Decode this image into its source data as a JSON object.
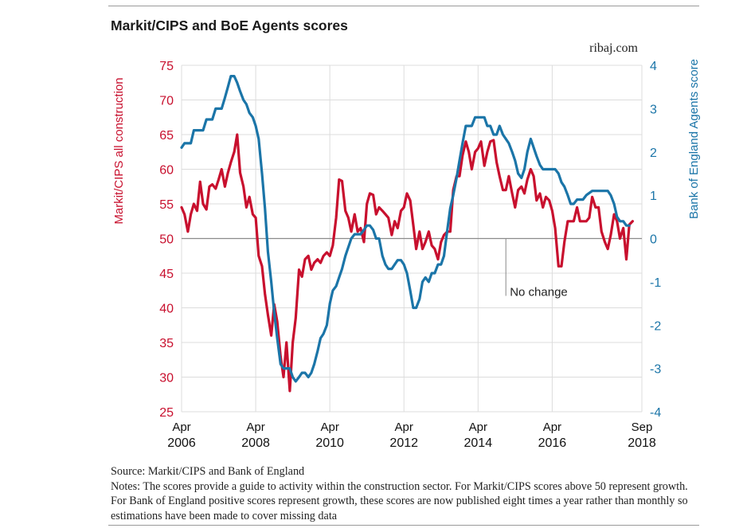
{
  "chart_data": {
    "type": "line",
    "title": "Markit/CIPS and BoE Agents scores",
    "source_brand": "ribaj.com",
    "ylabel_left": "Markit/CIPS all construction",
    "ylabel_right": "Bank of England Agents score",
    "ylim_left": [
      25,
      75
    ],
    "ylim_right": [
      -4,
      4
    ],
    "yticks_left": [
      "75",
      "70",
      "65",
      "60",
      "55",
      "50",
      "45",
      "40",
      "35",
      "30",
      "25"
    ],
    "yticks_right": [
      "4",
      "3",
      "2",
      "1",
      "0",
      "-1",
      "-2",
      "-3",
      "-4"
    ],
    "xlim": [
      2006.25,
      2018.67
    ],
    "x_ticks": [
      {
        "month": "Apr",
        "year": "2006",
        "x": 2006.25
      },
      {
        "month": "Apr",
        "year": "2008",
        "x": 2008.25
      },
      {
        "month": "Apr",
        "year": "2010",
        "x": 2010.25
      },
      {
        "month": "Apr",
        "year": "2012",
        "x": 2012.25
      },
      {
        "month": "Apr",
        "year": "2014",
        "x": 2014.25
      },
      {
        "month": "Apr",
        "year": "2016",
        "x": 2016.25
      },
      {
        "month": "Sep",
        "year": "2018",
        "x": 2018.67
      }
    ],
    "grid": true,
    "reference_line": {
      "value_left": 50,
      "label": "No change",
      "x": 2015.0
    },
    "series": [
      {
        "name": "Markit/CIPS all construction",
        "axis": "left",
        "color": "#c8102e",
        "points": [
          [
            2006.25,
            54.5
          ],
          [
            2006.33,
            53.5
          ],
          [
            2006.42,
            51
          ],
          [
            2006.5,
            53.5
          ],
          [
            2006.58,
            55
          ],
          [
            2006.67,
            54
          ],
          [
            2006.75,
            58.2
          ],
          [
            2006.83,
            55
          ],
          [
            2006.92,
            54.2
          ],
          [
            2007.0,
            57.5
          ],
          [
            2007.08,
            57.8
          ],
          [
            2007.17,
            57.2
          ],
          [
            2007.25,
            58.5
          ],
          [
            2007.33,
            60
          ],
          [
            2007.42,
            57.5
          ],
          [
            2007.5,
            59.5
          ],
          [
            2007.58,
            61
          ],
          [
            2007.67,
            62.5
          ],
          [
            2007.75,
            65
          ],
          [
            2007.83,
            59.5
          ],
          [
            2007.92,
            57.5
          ],
          [
            2008.0,
            54.5
          ],
          [
            2008.08,
            56
          ],
          [
            2008.17,
            53.5
          ],
          [
            2008.25,
            53
          ],
          [
            2008.33,
            47.5
          ],
          [
            2008.42,
            46
          ],
          [
            2008.5,
            42
          ],
          [
            2008.58,
            39
          ],
          [
            2008.67,
            36
          ],
          [
            2008.75,
            40.5
          ],
          [
            2008.83,
            38
          ],
          [
            2008.92,
            33
          ],
          [
            2009.0,
            30
          ],
          [
            2009.08,
            35
          ],
          [
            2009.17,
            28
          ],
          [
            2009.25,
            35
          ],
          [
            2009.33,
            38.5
          ],
          [
            2009.42,
            45.5
          ],
          [
            2009.5,
            44.5
          ],
          [
            2009.58,
            47
          ],
          [
            2009.67,
            47.5
          ],
          [
            2009.75,
            45.5
          ],
          [
            2009.83,
            46.5
          ],
          [
            2009.92,
            47
          ],
          [
            2010.0,
            46.5
          ],
          [
            2010.08,
            47.5
          ],
          [
            2010.17,
            48
          ],
          [
            2010.25,
            47.5
          ],
          [
            2010.33,
            49
          ],
          [
            2010.42,
            53
          ],
          [
            2010.5,
            58.5
          ],
          [
            2010.58,
            58.3
          ],
          [
            2010.67,
            54
          ],
          [
            2010.75,
            53
          ],
          [
            2010.83,
            51
          ],
          [
            2010.92,
            53.5
          ],
          [
            2011.0,
            51
          ],
          [
            2011.08,
            51.5
          ],
          [
            2011.17,
            49.5
          ],
          [
            2011.25,
            55
          ],
          [
            2011.33,
            56.5
          ],
          [
            2011.42,
            56.3
          ],
          [
            2011.5,
            53.5
          ],
          [
            2011.58,
            54.5
          ],
          [
            2011.67,
            54
          ],
          [
            2011.75,
            53.5
          ],
          [
            2011.83,
            53
          ],
          [
            2011.92,
            50.5
          ],
          [
            2012.0,
            52.5
          ],
          [
            2012.08,
            51.5
          ],
          [
            2012.17,
            54
          ],
          [
            2012.25,
            54.5
          ],
          [
            2012.33,
            56.5
          ],
          [
            2012.42,
            55.5
          ],
          [
            2012.5,
            52
          ],
          [
            2012.58,
            48.5
          ],
          [
            2012.67,
            51
          ],
          [
            2012.75,
            48.5
          ],
          [
            2012.83,
            49.5
          ],
          [
            2012.92,
            51
          ],
          [
            2013.0,
            49
          ],
          [
            2013.08,
            48.5
          ],
          [
            2013.17,
            47
          ],
          [
            2013.25,
            49.5
          ],
          [
            2013.33,
            50.5
          ],
          [
            2013.42,
            51
          ],
          [
            2013.5,
            51
          ],
          [
            2013.58,
            57
          ],
          [
            2013.67,
            59
          ],
          [
            2013.75,
            59
          ],
          [
            2013.83,
            62
          ],
          [
            2013.92,
            64
          ],
          [
            2014.0,
            62.5
          ],
          [
            2014.08,
            60
          ],
          [
            2014.17,
            62.5
          ],
          [
            2014.25,
            63
          ],
          [
            2014.33,
            64
          ],
          [
            2014.42,
            60.5
          ],
          [
            2014.5,
            62.5
          ],
          [
            2014.58,
            64
          ],
          [
            2014.67,
            64.2
          ],
          [
            2014.75,
            61
          ],
          [
            2014.83,
            59
          ],
          [
            2014.92,
            57
          ],
          [
            2015.0,
            57
          ],
          [
            2015.08,
            59
          ],
          [
            2015.17,
            56.5
          ],
          [
            2015.25,
            54.5
          ],
          [
            2015.33,
            57
          ],
          [
            2015.42,
            57.5
          ],
          [
            2015.5,
            56.5
          ],
          [
            2015.58,
            58.5
          ],
          [
            2015.67,
            60
          ],
          [
            2015.75,
            59
          ],
          [
            2015.83,
            55.5
          ],
          [
            2015.92,
            56.5
          ],
          [
            2016.0,
            54.5
          ],
          [
            2016.08,
            56
          ],
          [
            2016.17,
            55.5
          ],
          [
            2016.25,
            54
          ],
          [
            2016.33,
            51.5
          ],
          [
            2016.42,
            46
          ],
          [
            2016.5,
            46
          ],
          [
            2016.58,
            49.5
          ],
          [
            2016.67,
            52.5
          ],
          [
            2016.75,
            52.5
          ],
          [
            2016.83,
            52.5
          ],
          [
            2016.92,
            54.5
          ],
          [
            2017.0,
            52.5
          ],
          [
            2017.08,
            52.5
          ],
          [
            2017.17,
            52.5
          ],
          [
            2017.25,
            53
          ],
          [
            2017.33,
            56
          ],
          [
            2017.42,
            54.5
          ],
          [
            2017.5,
            54.5
          ],
          [
            2017.58,
            51
          ],
          [
            2017.67,
            49.5
          ],
          [
            2017.75,
            48.5
          ],
          [
            2017.83,
            50.5
          ],
          [
            2017.92,
            53.5
          ],
          [
            2018.0,
            52.5
          ],
          [
            2018.08,
            50
          ],
          [
            2018.17,
            51.5
          ],
          [
            2018.25,
            47
          ],
          [
            2018.33,
            52
          ],
          [
            2018.42,
            52.5
          ]
        ]
      },
      {
        "name": "Bank of England Agents score",
        "axis": "right",
        "color": "#1b75a8",
        "points": [
          [
            2006.25,
            2.1
          ],
          [
            2006.33,
            2.2
          ],
          [
            2006.5,
            2.2
          ],
          [
            2006.58,
            2.5
          ],
          [
            2006.83,
            2.5
          ],
          [
            2006.92,
            2.75
          ],
          [
            2007.08,
            2.75
          ],
          [
            2007.17,
            3.0
          ],
          [
            2007.33,
            3.0
          ],
          [
            2007.42,
            3.25
          ],
          [
            2007.5,
            3.5
          ],
          [
            2007.58,
            3.75
          ],
          [
            2007.67,
            3.75
          ],
          [
            2007.75,
            3.6
          ],
          [
            2007.83,
            3.4
          ],
          [
            2007.92,
            3.2
          ],
          [
            2008.0,
            3.1
          ],
          [
            2008.08,
            2.9
          ],
          [
            2008.17,
            2.8
          ],
          [
            2008.25,
            2.6
          ],
          [
            2008.33,
            2.3
          ],
          [
            2008.42,
            1.5
          ],
          [
            2008.5,
            0.7
          ],
          [
            2008.58,
            -0.3
          ],
          [
            2008.67,
            -1.0
          ],
          [
            2008.75,
            -1.7
          ],
          [
            2008.83,
            -2.3
          ],
          [
            2008.92,
            -2.9
          ],
          [
            2009.0,
            -3.0
          ],
          [
            2009.08,
            -3.0
          ],
          [
            2009.17,
            -3.0
          ],
          [
            2009.25,
            -3.2
          ],
          [
            2009.33,
            -3.3
          ],
          [
            2009.42,
            -3.2
          ],
          [
            2009.5,
            -3.1
          ],
          [
            2009.58,
            -3.1
          ],
          [
            2009.67,
            -3.2
          ],
          [
            2009.75,
            -3.1
          ],
          [
            2009.83,
            -2.9
          ],
          [
            2009.92,
            -2.6
          ],
          [
            2010.0,
            -2.3
          ],
          [
            2010.08,
            -2.2
          ],
          [
            2010.17,
            -2.0
          ],
          [
            2010.25,
            -1.5
          ],
          [
            2010.33,
            -1.2
          ],
          [
            2010.42,
            -1.1
          ],
          [
            2010.5,
            -0.9
          ],
          [
            2010.58,
            -0.7
          ],
          [
            2010.67,
            -0.4
          ],
          [
            2010.75,
            -0.2
          ],
          [
            2010.83,
            0.0
          ],
          [
            2010.92,
            0.1
          ],
          [
            2011.08,
            0.1
          ],
          [
            2011.17,
            0.2
          ],
          [
            2011.25,
            0.3
          ],
          [
            2011.33,
            0.3
          ],
          [
            2011.42,
            0.2
          ],
          [
            2011.5,
            0.0
          ],
          [
            2011.58,
            0.0
          ],
          [
            2011.67,
            -0.4
          ],
          [
            2011.75,
            -0.6
          ],
          [
            2011.83,
            -0.7
          ],
          [
            2011.92,
            -0.7
          ],
          [
            2012.0,
            -0.6
          ],
          [
            2012.08,
            -0.5
          ],
          [
            2012.17,
            -0.5
          ],
          [
            2012.25,
            -0.6
          ],
          [
            2012.33,
            -0.8
          ],
          [
            2012.42,
            -1.2
          ],
          [
            2012.5,
            -1.6
          ],
          [
            2012.58,
            -1.6
          ],
          [
            2012.67,
            -1.4
          ],
          [
            2012.75,
            -1.0
          ],
          [
            2012.83,
            -0.9
          ],
          [
            2012.92,
            -1.0
          ],
          [
            2013.0,
            -0.8
          ],
          [
            2013.08,
            -0.8
          ],
          [
            2013.17,
            -0.6
          ],
          [
            2013.25,
            -0.6
          ],
          [
            2013.33,
            -0.4
          ],
          [
            2013.42,
            0.2
          ],
          [
            2013.5,
            0.7
          ],
          [
            2013.58,
            1.0
          ],
          [
            2013.67,
            1.4
          ],
          [
            2013.75,
            1.8
          ],
          [
            2013.83,
            2.2
          ],
          [
            2013.92,
            2.6
          ],
          [
            2014.0,
            2.6
          ],
          [
            2014.08,
            2.6
          ],
          [
            2014.17,
            2.8
          ],
          [
            2014.42,
            2.8
          ],
          [
            2014.5,
            2.6
          ],
          [
            2014.58,
            2.6
          ],
          [
            2014.67,
            2.4
          ],
          [
            2014.75,
            2.4
          ],
          [
            2014.83,
            2.6
          ],
          [
            2014.92,
            2.4
          ],
          [
            2015.08,
            2.2
          ],
          [
            2015.17,
            2.0
          ],
          [
            2015.25,
            1.8
          ],
          [
            2015.33,
            1.5
          ],
          [
            2015.42,
            1.4
          ],
          [
            2015.5,
            1.6
          ],
          [
            2015.58,
            2.0
          ],
          [
            2015.67,
            2.3
          ],
          [
            2015.75,
            2.1
          ],
          [
            2015.83,
            1.9
          ],
          [
            2015.92,
            1.7
          ],
          [
            2016.0,
            1.6
          ],
          [
            2016.08,
            1.6
          ],
          [
            2016.17,
            1.6
          ],
          [
            2016.25,
            1.6
          ],
          [
            2016.33,
            1.6
          ],
          [
            2016.42,
            1.5
          ],
          [
            2016.5,
            1.3
          ],
          [
            2016.58,
            1.2
          ],
          [
            2016.67,
            1.0
          ],
          [
            2016.75,
            0.8
          ],
          [
            2016.83,
            0.8
          ],
          [
            2016.92,
            0.9
          ],
          [
            2017.08,
            0.9
          ],
          [
            2017.17,
            1.0
          ],
          [
            2017.33,
            1.1
          ],
          [
            2017.42,
            1.1
          ],
          [
            2017.67,
            1.1
          ],
          [
            2017.75,
            1.1
          ],
          [
            2017.83,
            1.0
          ],
          [
            2017.92,
            0.8
          ],
          [
            2018.0,
            0.5
          ],
          [
            2018.08,
            0.4
          ],
          [
            2018.17,
            0.4
          ],
          [
            2018.25,
            0.3
          ],
          [
            2018.33,
            0.3
          ]
        ]
      }
    ]
  },
  "footer": {
    "source": "Source: Markit/CIPS and Bank of England",
    "notes": "Notes: The scores provide a guide to activity within the construction sector. For Markit/CIPS scores above 50 represent growth. For Bank of England positive scores represent growth, these scores are now published eight times a year rather than monthly so estimations have been made to cover missing data"
  }
}
